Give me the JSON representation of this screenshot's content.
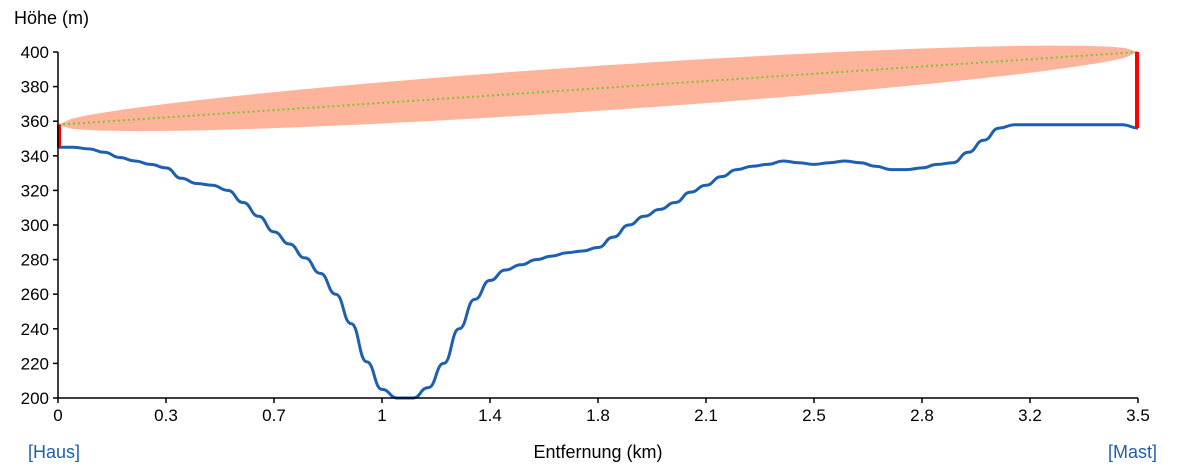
{
  "chart_data": {
    "type": "line",
    "ylabel": "Höhe (m)",
    "xlabel": "Entfernung (km)",
    "ylim": [
      200,
      400
    ],
    "xlim": [
      0,
      3.5
    ],
    "yticks": [
      200,
      220,
      240,
      260,
      280,
      300,
      320,
      340,
      360,
      380,
      400
    ],
    "xticks": [
      {
        "value": 0,
        "label": "0"
      },
      {
        "value": 0.35,
        "label": "0.3"
      },
      {
        "value": 0.7,
        "label": "0.7"
      },
      {
        "value": 1.05,
        "label": "1"
      },
      {
        "value": 1.4,
        "label": "1.4"
      },
      {
        "value": 1.75,
        "label": "1.8"
      },
      {
        "value": 2.1,
        "label": "2.1"
      },
      {
        "value": 2.45,
        "label": "2.5"
      },
      {
        "value": 2.8,
        "label": "2.8"
      },
      {
        "value": 3.15,
        "label": "3.2"
      },
      {
        "value": 3.5,
        "label": "3.5"
      }
    ],
    "start_label": "[Haus]",
    "end_label": "[Mast]",
    "colors": {
      "terrain": "#1f5fb0",
      "fresnel_zone": "#fdb49a",
      "line_of_sight": "#7cc62a",
      "antenna": "#ff0000"
    },
    "terrain": {
      "x": [
        0,
        0.05,
        0.1,
        0.15,
        0.2,
        0.25,
        0.3,
        0.35,
        0.4,
        0.45,
        0.5,
        0.55,
        0.6,
        0.65,
        0.7,
        0.75,
        0.8,
        0.85,
        0.9,
        0.95,
        1.0,
        1.05,
        1.1,
        1.15,
        1.2,
        1.25,
        1.3,
        1.35,
        1.4,
        1.45,
        1.5,
        1.55,
        1.6,
        1.65,
        1.7,
        1.75,
        1.8,
        1.85,
        1.9,
        1.95,
        2.0,
        2.05,
        2.1,
        2.15,
        2.2,
        2.25,
        2.3,
        2.35,
        2.4,
        2.45,
        2.5,
        2.55,
        2.6,
        2.65,
        2.7,
        2.75,
        2.8,
        2.85,
        2.9,
        2.95,
        3.0,
        3.05,
        3.1,
        3.15,
        3.2,
        3.25,
        3.3,
        3.35,
        3.4,
        3.45,
        3.5
      ],
      "y": [
        345,
        345,
        344,
        342,
        339,
        337,
        335,
        333,
        327,
        324,
        323,
        320,
        313,
        305,
        296,
        289,
        281,
        272,
        260,
        243,
        221,
        205,
        200,
        200,
        206,
        220,
        240,
        257,
        268,
        274,
        277,
        280,
        282,
        284,
        285,
        287,
        293,
        300,
        305,
        309,
        313,
        319,
        323,
        328,
        332,
        334,
        335,
        337,
        336,
        335,
        336,
        337,
        336,
        334,
        332,
        332,
        333,
        335,
        336,
        342,
        349,
        356,
        358,
        358,
        358,
        358,
        358,
        358,
        358,
        358,
        356
      ]
    },
    "antenna_start": {
      "x": 0,
      "ground": 345,
      "top": 358
    },
    "antenna_end": {
      "x": 3.5,
      "ground": 356,
      "top": 400
    },
    "fresnel_max_radius_m": 13
  }
}
